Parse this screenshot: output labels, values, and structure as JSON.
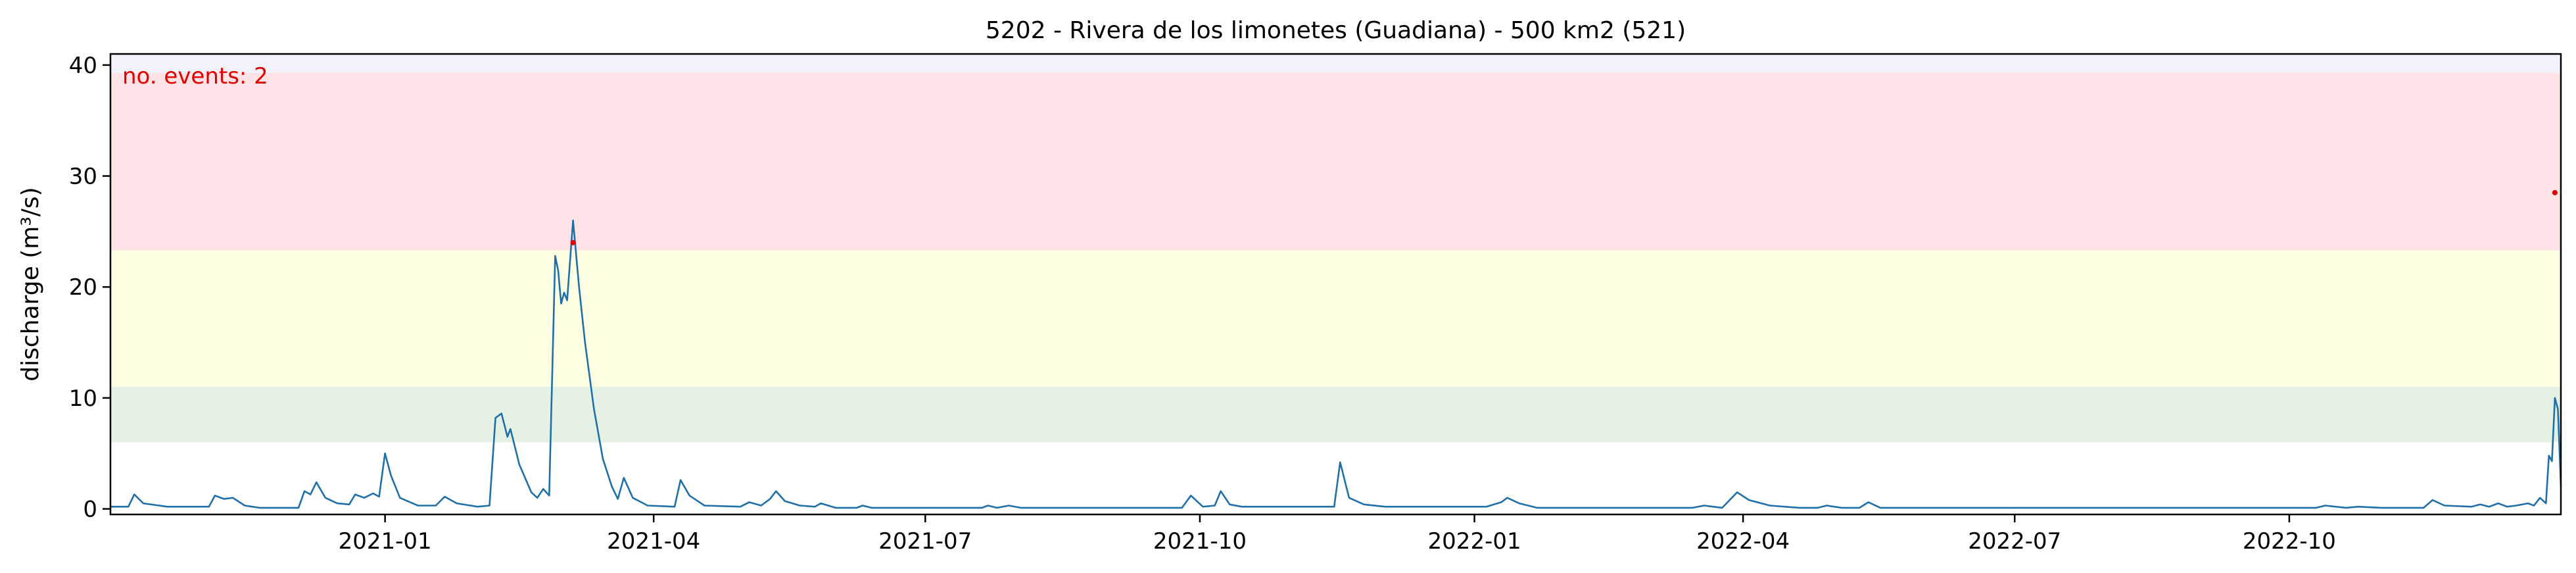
{
  "chart_data": {
    "type": "line",
    "title": "5202 - Rivera de los limonetes (Guadiana) - 500 km2 (521)",
    "xlabel": "",
    "ylabel": "discharge (m³/s)",
    "annotation": "no. events: 2",
    "xlim": [
      "2020-10-01",
      "2022-12-31"
    ],
    "ylim": [
      -0.5,
      41
    ],
    "x_ticks": [
      "2021-01",
      "2021-04",
      "2021-07",
      "2021-10",
      "2022-01",
      "2022-04",
      "2022-07",
      "2022-10"
    ],
    "x_tick_dates": [
      "2021-01-01",
      "2021-04-01",
      "2021-07-01",
      "2021-10-01",
      "2022-01-01",
      "2022-04-01",
      "2022-07-01",
      "2022-10-01"
    ],
    "y_ticks": [
      0,
      10,
      20,
      30,
      40
    ],
    "grid": false,
    "threshold_bands": [
      {
        "from": 6,
        "to": 11,
        "color": "#e4f1e4"
      },
      {
        "from": 11,
        "to": 23.3,
        "color": "#ffffe4"
      },
      {
        "from": 23.3,
        "to": 39.3,
        "color": "#ffe3e6"
      },
      {
        "from": 39.3,
        "to": 41,
        "color": "#f2f2fb"
      }
    ],
    "series": [
      {
        "color": "#1f6fa8",
        "points": [
          [
            "2020-10-01",
            0.2
          ],
          [
            "2020-10-07",
            0.2
          ],
          [
            "2020-10-09",
            1.3
          ],
          [
            "2020-10-12",
            0.5
          ],
          [
            "2020-10-20",
            0.2
          ],
          [
            "2020-11-03",
            0.2
          ],
          [
            "2020-11-05",
            1.2
          ],
          [
            "2020-11-08",
            0.9
          ],
          [
            "2020-11-11",
            1.0
          ],
          [
            "2020-11-15",
            0.3
          ],
          [
            "2020-11-20",
            0.1
          ],
          [
            "2020-12-03",
            0.1
          ],
          [
            "2020-12-05",
            1.6
          ],
          [
            "2020-12-07",
            1.3
          ],
          [
            "2020-12-09",
            2.4
          ],
          [
            "2020-12-12",
            1.0
          ],
          [
            "2020-12-16",
            0.5
          ],
          [
            "2020-12-20",
            0.4
          ],
          [
            "2020-12-22",
            1.3
          ],
          [
            "2020-12-25",
            1.0
          ],
          [
            "2020-12-28",
            1.4
          ],
          [
            "2020-12-30",
            1.1
          ],
          [
            "2021-01-01",
            5.0
          ],
          [
            "2021-01-03",
            3.0
          ],
          [
            "2021-01-06",
            1.0
          ],
          [
            "2021-01-12",
            0.3
          ],
          [
            "2021-01-18",
            0.3
          ],
          [
            "2021-01-21",
            1.1
          ],
          [
            "2021-01-25",
            0.5
          ],
          [
            "2021-02-01",
            0.2
          ],
          [
            "2021-02-05",
            0.3
          ],
          [
            "2021-02-07",
            8.2
          ],
          [
            "2021-02-09",
            8.6
          ],
          [
            "2021-02-11",
            6.5
          ],
          [
            "2021-02-12",
            7.2
          ],
          [
            "2021-02-15",
            4.0
          ],
          [
            "2021-02-19",
            1.5
          ],
          [
            "2021-02-21",
            1.0
          ],
          [
            "2021-02-23",
            1.8
          ],
          [
            "2021-02-25",
            1.2
          ],
          [
            "2021-02-27",
            22.8
          ],
          [
            "2021-02-28",
            21.5
          ],
          [
            "2021-03-01",
            18.5
          ],
          [
            "2021-03-02",
            19.5
          ],
          [
            "2021-03-03",
            18.8
          ],
          [
            "2021-03-05",
            26.0
          ],
          [
            "2021-03-07",
            20.0
          ],
          [
            "2021-03-09",
            15.0
          ],
          [
            "2021-03-12",
            9.0
          ],
          [
            "2021-03-15",
            4.5
          ],
          [
            "2021-03-18",
            2.0
          ],
          [
            "2021-03-20",
            0.9
          ],
          [
            "2021-03-22",
            2.8
          ],
          [
            "2021-03-25",
            1.0
          ],
          [
            "2021-03-30",
            0.3
          ],
          [
            "2021-04-08",
            0.2
          ],
          [
            "2021-04-10",
            2.6
          ],
          [
            "2021-04-13",
            1.2
          ],
          [
            "2021-04-18",
            0.3
          ],
          [
            "2021-04-30",
            0.2
          ],
          [
            "2021-05-03",
            0.6
          ],
          [
            "2021-05-07",
            0.3
          ],
          [
            "2021-05-10",
            0.9
          ],
          [
            "2021-05-12",
            1.6
          ],
          [
            "2021-05-15",
            0.7
          ],
          [
            "2021-05-20",
            0.3
          ],
          [
            "2021-05-25",
            0.2
          ],
          [
            "2021-05-27",
            0.5
          ],
          [
            "2021-06-01",
            0.1
          ],
          [
            "2021-06-08",
            0.1
          ],
          [
            "2021-06-10",
            0.3
          ],
          [
            "2021-06-13",
            0.1
          ],
          [
            "2021-07-20",
            0.1
          ],
          [
            "2021-07-22",
            0.3
          ],
          [
            "2021-07-25",
            0.1
          ],
          [
            "2021-07-29",
            0.3
          ],
          [
            "2021-08-02",
            0.1
          ],
          [
            "2021-09-25",
            0.1
          ],
          [
            "2021-09-28",
            1.2
          ],
          [
            "2021-10-02",
            0.2
          ],
          [
            "2021-10-06",
            0.3
          ],
          [
            "2021-10-08",
            1.6
          ],
          [
            "2021-10-11",
            0.4
          ],
          [
            "2021-10-15",
            0.2
          ],
          [
            "2021-11-15",
            0.2
          ],
          [
            "2021-11-17",
            4.2
          ],
          [
            "2021-11-20",
            1.0
          ],
          [
            "2021-11-25",
            0.4
          ],
          [
            "2021-12-02",
            0.2
          ],
          [
            "2022-01-05",
            0.2
          ],
          [
            "2022-01-10",
            0.6
          ],
          [
            "2022-01-12",
            1.0
          ],
          [
            "2022-01-16",
            0.5
          ],
          [
            "2022-01-22",
            0.1
          ],
          [
            "2022-03-15",
            0.1
          ],
          [
            "2022-03-19",
            0.3
          ],
          [
            "2022-03-25",
            0.1
          ],
          [
            "2022-03-30",
            1.5
          ],
          [
            "2022-04-03",
            0.8
          ],
          [
            "2022-04-10",
            0.3
          ],
          [
            "2022-04-20",
            0.1
          ],
          [
            "2022-04-26",
            0.1
          ],
          [
            "2022-04-29",
            0.3
          ],
          [
            "2022-05-04",
            0.1
          ],
          [
            "2022-05-10",
            0.1
          ],
          [
            "2022-05-13",
            0.6
          ],
          [
            "2022-05-17",
            0.1
          ],
          [
            "2022-10-10",
            0.1
          ],
          [
            "2022-10-13",
            0.3
          ],
          [
            "2022-10-20",
            0.1
          ],
          [
            "2022-10-24",
            0.2
          ],
          [
            "2022-11-01",
            0.1
          ],
          [
            "2022-11-15",
            0.1
          ],
          [
            "2022-11-18",
            0.8
          ],
          [
            "2022-11-22",
            0.3
          ],
          [
            "2022-12-01",
            0.2
          ],
          [
            "2022-12-04",
            0.4
          ],
          [
            "2022-12-07",
            0.2
          ],
          [
            "2022-12-10",
            0.5
          ],
          [
            "2022-12-13",
            0.2
          ],
          [
            "2022-12-16",
            0.3
          ],
          [
            "2022-12-20",
            0.5
          ],
          [
            "2022-12-22",
            0.3
          ],
          [
            "2022-12-24",
            1.0
          ],
          [
            "2022-12-26",
            0.5
          ],
          [
            "2022-12-27",
            4.8
          ],
          [
            "2022-12-28",
            4.3
          ],
          [
            "2022-12-29",
            10.0
          ],
          [
            "2022-12-30",
            9.0
          ],
          [
            "2022-12-31",
            2.0
          ]
        ]
      }
    ],
    "event_markers": [
      {
        "x": "2021-03-05",
        "y": 24.0,
        "color": "#e00000"
      },
      {
        "x": "2022-12-29",
        "y": 28.5,
        "color": "#e00000"
      }
    ]
  }
}
